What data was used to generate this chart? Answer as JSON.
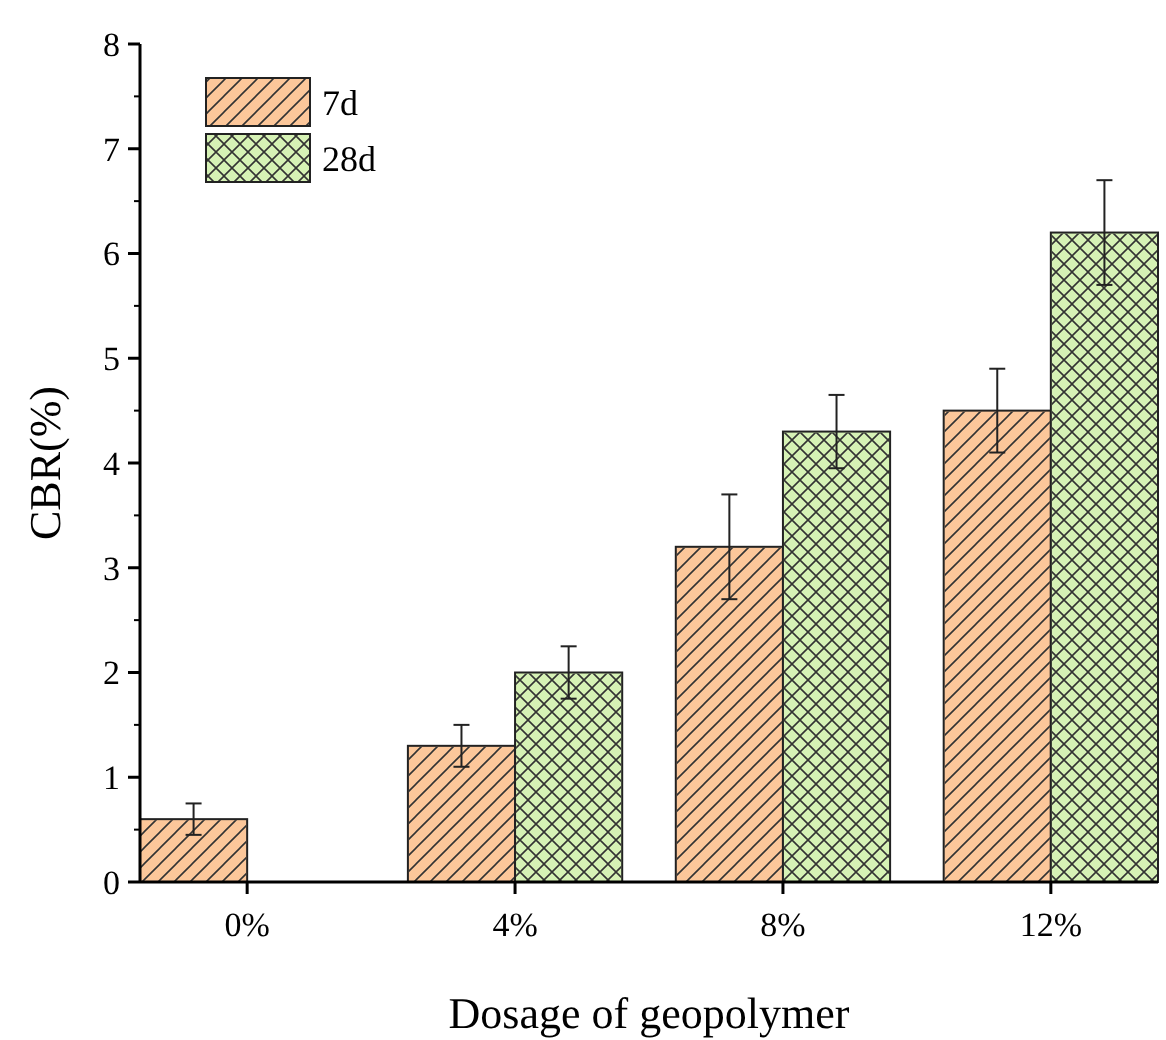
{
  "chart_data": {
    "type": "bar",
    "xlabel": "Dosage of geopolymer",
    "ylabel": "CBR(%)",
    "categories": [
      "0%",
      "4%",
      "8%",
      "12%"
    ],
    "series": [
      {
        "name": "7d",
        "color": "#fcc79a",
        "values": [
          0.6,
          1.3,
          3.2,
          4.5
        ],
        "errors": [
          0.15,
          0.2,
          0.5,
          0.4
        ]
      },
      {
        "name": "28d",
        "color": "#d6f2b5",
        "values": [
          null,
          2.0,
          4.3,
          6.2
        ],
        "errors": [
          null,
          0.25,
          0.35,
          0.5
        ]
      }
    ],
    "ylim": [
      0,
      8
    ],
    "yticks": [
      0,
      1,
      2,
      3,
      4,
      5,
      6,
      7,
      8
    ],
    "legend": "top left",
    "grid": false
  }
}
